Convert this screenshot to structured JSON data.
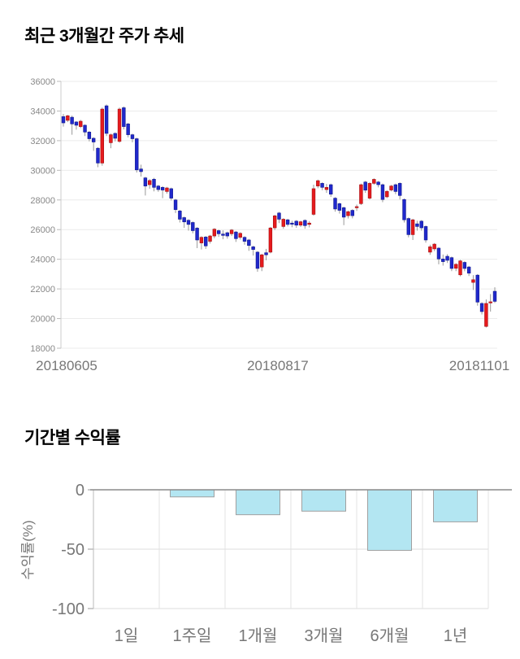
{
  "page": {
    "background": "#ffffff"
  },
  "chart_data": [
    {
      "type": "candlestick",
      "title": "최근 3개월간 주가 추세",
      "ylabel": "",
      "xlabel": "",
      "ylim": [
        18000,
        36000
      ],
      "grid": "horizontal",
      "y_ticks": [
        36000,
        34000,
        32000,
        30000,
        28000,
        26000,
        24000,
        22000,
        20000,
        18000
      ],
      "x_tick_labels": [
        "20180605",
        "20180817",
        "20181101"
      ],
      "colors": {
        "up": "#e61a1d",
        "up_border": "#a50f12",
        "down": "#2028cc",
        "down_border": "#111a8f",
        "wick": "#999999",
        "grid": "#ebebeb",
        "axis": "#cccccc",
        "tick_text": "#888888",
        "date_text": "#777777"
      },
      "candles_format": [
        "open",
        "close",
        "low",
        "high"
      ],
      "candles": [
        [
          33620,
          33200,
          32950,
          33800
        ],
        [
          33370,
          33680,
          33250,
          33740
        ],
        [
          33580,
          33130,
          32400,
          33690
        ],
        [
          33260,
          33040,
          32740,
          33320
        ],
        [
          32950,
          33310,
          32850,
          33400
        ],
        [
          33040,
          32580,
          32310,
          33100
        ],
        [
          32580,
          32130,
          31950,
          32650
        ],
        [
          32160,
          31910,
          31310,
          32230
        ],
        [
          31490,
          30490,
          30210,
          31560
        ],
        [
          30490,
          34130,
          30310,
          34230
        ],
        [
          34350,
          32490,
          32310,
          34440
        ],
        [
          31860,
          32400,
          31490,
          32480
        ],
        [
          32490,
          32160,
          31950,
          32560
        ],
        [
          31950,
          34130,
          31860,
          34230
        ],
        [
          34220,
          32950,
          32760,
          34310
        ],
        [
          33130,
          32400,
          32220,
          33200
        ],
        [
          32400,
          32130,
          31890,
          32470
        ],
        [
          32130,
          30030,
          29850,
          32200
        ],
        [
          30090,
          29910,
          29580,
          30380
        ],
        [
          29490,
          28940,
          28300,
          29560
        ],
        [
          29030,
          29310,
          28760,
          29400
        ],
        [
          29400,
          28850,
          28580,
          29490
        ],
        [
          28940,
          28700,
          28550,
          29010
        ],
        [
          28850,
          28670,
          28120,
          28930
        ],
        [
          28570,
          28810,
          28430,
          28880
        ],
        [
          28760,
          28120,
          27960,
          28830
        ],
        [
          28000,
          27350,
          27120,
          28070
        ],
        [
          27260,
          26700,
          26480,
          27330
        ],
        [
          26810,
          26520,
          26120,
          26880
        ],
        [
          26630,
          26350,
          25930,
          26700
        ],
        [
          26480,
          25930,
          25750,
          26550
        ],
        [
          26100,
          25300,
          24750,
          26170
        ],
        [
          25100,
          25480,
          24660,
          25550
        ],
        [
          25500,
          24900,
          24700,
          25570
        ],
        [
          25210,
          25570,
          25060,
          25640
        ],
        [
          25570,
          26030,
          25420,
          26100
        ],
        [
          25930,
          25720,
          25510,
          26000
        ],
        [
          25700,
          25610,
          25350,
          25950
        ],
        [
          25790,
          25570,
          25390,
          25860
        ],
        [
          25720,
          25970,
          25570,
          26040
        ],
        [
          25840,
          25390,
          25170,
          25910
        ],
        [
          25480,
          25750,
          25330,
          25820
        ],
        [
          25480,
          25210,
          24980,
          25550
        ],
        [
          25300,
          24930,
          24570,
          25370
        ],
        [
          24840,
          24660,
          24250,
          24910
        ],
        [
          24480,
          23380,
          23160,
          24550
        ],
        [
          23480,
          24300,
          23200,
          24370
        ],
        [
          24440,
          24300,
          23930,
          24700
        ],
        [
          24480,
          26110,
          24400,
          26180
        ],
        [
          26120,
          26930,
          25970,
          27000
        ],
        [
          27120,
          26700,
          26440,
          27190
        ],
        [
          26210,
          26700,
          26060,
          26770
        ],
        [
          26660,
          26350,
          26210,
          26730
        ],
        [
          26440,
          26390,
          26160,
          26600
        ],
        [
          26570,
          26300,
          26120,
          26640
        ],
        [
          26300,
          26530,
          26180,
          26600
        ],
        [
          26620,
          26270,
          26060,
          26690
        ],
        [
          26350,
          26440,
          26150,
          26570
        ],
        [
          27030,
          28760,
          26940,
          29030
        ],
        [
          28940,
          29300,
          28790,
          29370
        ],
        [
          29120,
          28850,
          28660,
          29190
        ],
        [
          28700,
          28850,
          28480,
          29080
        ],
        [
          29030,
          28390,
          28210,
          29100
        ],
        [
          28120,
          27390,
          27210,
          28190
        ],
        [
          27750,
          27300,
          27080,
          27820
        ],
        [
          27480,
          26840,
          26300,
          27550
        ],
        [
          26940,
          27210,
          26750,
          27280
        ],
        [
          27300,
          26940,
          26760,
          27370
        ],
        [
          27480,
          27550,
          27260,
          27690
        ],
        [
          27750,
          29030,
          27660,
          29100
        ],
        [
          29210,
          28660,
          28480,
          29280
        ],
        [
          28120,
          29120,
          28030,
          29190
        ],
        [
          29120,
          29390,
          29030,
          29460
        ],
        [
          29210,
          29030,
          28850,
          29280
        ],
        [
          29030,
          28030,
          27850,
          29100
        ],
        [
          28210,
          28580,
          28120,
          28650
        ],
        [
          28670,
          28940,
          28580,
          29010
        ],
        [
          29030,
          28570,
          28390,
          29100
        ],
        [
          29120,
          28300,
          28030,
          29190
        ],
        [
          28030,
          26660,
          26480,
          28100
        ],
        [
          26750,
          25660,
          25480,
          26820
        ],
        [
          25660,
          26660,
          25300,
          26730
        ],
        [
          26390,
          26210,
          25930,
          26600
        ],
        [
          26570,
          26120,
          25930,
          26640
        ],
        [
          26210,
          25300,
          25120,
          26280
        ],
        [
          24480,
          24840,
          24300,
          24980
        ],
        [
          24700,
          25020,
          24550,
          25090
        ],
        [
          24750,
          24020,
          23660,
          24820
        ],
        [
          24020,
          23840,
          23570,
          24320
        ],
        [
          24200,
          23930,
          23750,
          24340
        ],
        [
          24110,
          23380,
          23200,
          24180
        ],
        [
          23390,
          23660,
          23200,
          23730
        ],
        [
          22950,
          23890,
          22850,
          23960
        ],
        [
          23790,
          23380,
          23190,
          23860
        ],
        [
          23480,
          23060,
          22870,
          23550
        ],
        [
          22440,
          22620,
          21930,
          22930
        ],
        [
          22930,
          21110,
          20870,
          23000
        ],
        [
          21020,
          20470,
          20280,
          21100
        ],
        [
          19470,
          21020,
          19400,
          21290
        ],
        [
          21060,
          21130,
          20470,
          21650
        ],
        [
          21840,
          21160,
          21050,
          22110
        ]
      ]
    },
    {
      "type": "bar",
      "title": "기간별 수익률",
      "ylabel": "수익률(%)",
      "xlabel": "",
      "ylim": [
        -100,
        0
      ],
      "grid": "on",
      "legend": "none",
      "y_ticks": [
        0,
        -50,
        -100
      ],
      "categories": [
        "1일",
        "1주일",
        "1개월",
        "3개월",
        "6개월",
        "1년"
      ],
      "values": [
        0,
        -6,
        -21,
        -18,
        -51,
        -27
      ],
      "colors": {
        "bar": "#b3e6f2",
        "bar_border": "#a0a0a0",
        "zero_line": "#8a8a8a",
        "grid": "#dddddd",
        "separator": "#e3e3e3",
        "axis": "#bbbbbb",
        "text": "#777777"
      }
    }
  ]
}
